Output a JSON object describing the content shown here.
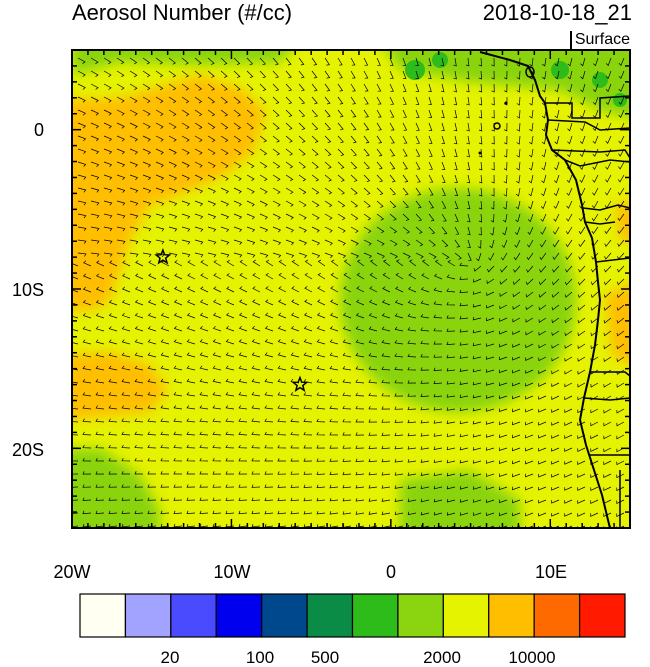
{
  "header": {
    "title": "Aerosol Number (#/cc)",
    "datetime": "2018-10-18_21",
    "level": "Surface"
  },
  "map": {
    "lon_range": [
      -20,
      15
    ],
    "lat_range": [
      -25,
      5
    ],
    "y_tick_labels": [
      {
        "lat": 0,
        "label": "0"
      },
      {
        "lat": -10,
        "label": "10S"
      },
      {
        "lat": -20,
        "label": "20S"
      }
    ],
    "x_tick_labels": [
      {
        "lon": -20,
        "label": "20W"
      },
      {
        "lon": -10,
        "label": "10W"
      },
      {
        "lon": 0,
        "label": "0"
      },
      {
        "lon": 10,
        "label": "10E"
      }
    ],
    "markers": [
      {
        "type": "star",
        "lon": -14.3,
        "lat": -8.0
      },
      {
        "type": "star",
        "lon": -5.7,
        "lat": -16.0
      }
    ],
    "wind_barbs": true
  },
  "colorbar": {
    "colors": [
      "#fffff2",
      "#a2a2ff",
      "#4a4aff",
      "#0000ee",
      "#00488e",
      "#0a8c46",
      "#2ebc1a",
      "#8ad410",
      "#e5f200",
      "#ffbe00",
      "#ff6a00",
      "#ff1a00"
    ],
    "labels": [
      "20",
      "100",
      "500",
      "2000",
      "10000"
    ]
  },
  "colors": {
    "yellow": "#e5f200",
    "orange": "#ffbe00",
    "light_green": "#8ad410",
    "green": "#2ebc1a"
  }
}
